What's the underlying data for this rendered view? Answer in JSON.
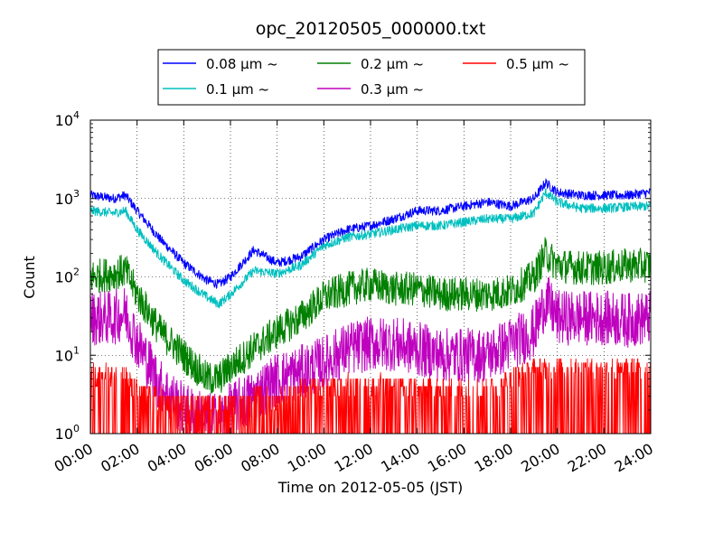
{
  "chart_data": {
    "type": "line",
    "title": "opc_20120505_000000.txt",
    "xlabel": "Time on 2012-05-05 (JST)",
    "ylabel": "Count",
    "yscale": "log",
    "ylim": [
      1,
      10000
    ],
    "xlim": [
      "00:00",
      "24:00"
    ],
    "grid": true,
    "legend_position": "top",
    "x_tick_labels": [
      "00:00",
      "02:00",
      "04:00",
      "06:00",
      "08:00",
      "10:00",
      "12:00",
      "14:00",
      "16:00",
      "18:00",
      "20:00",
      "22:00",
      "24:00"
    ],
    "y_tick_labels": [
      {
        "base": "10",
        "exp": "0"
      },
      {
        "base": "10",
        "exp": "1"
      },
      {
        "base": "10",
        "exp": "2"
      },
      {
        "base": "10",
        "exp": "3"
      },
      {
        "base": "10",
        "exp": "4"
      }
    ],
    "x_hours": [
      0,
      1,
      1.5,
      2,
      3,
      4,
      5,
      5.5,
      6,
      7,
      8,
      9,
      10,
      11,
      12,
      13,
      14,
      15,
      16,
      17,
      18,
      19,
      19.5,
      20,
      21,
      22,
      23,
      24
    ],
    "series": [
      {
        "name": "0.08 μm ~",
        "color": "#0000ff",
        "values": [
          1100,
          1000,
          1100,
          700,
          300,
          150,
          90,
          80,
          100,
          220,
          150,
          180,
          300,
          400,
          450,
          550,
          700,
          700,
          800,
          900,
          800,
          1000,
          1600,
          1200,
          1100,
          1100,
          1100,
          1200
        ]
      },
      {
        "name": "0.1 μm ~",
        "color": "#00bfbf",
        "values": [
          700,
          650,
          700,
          400,
          180,
          90,
          55,
          45,
          60,
          120,
          110,
          140,
          250,
          320,
          350,
          400,
          450,
          450,
          500,
          550,
          550,
          650,
          1200,
          900,
          750,
          750,
          780,
          800
        ]
      },
      {
        "name": "0.2 μm ~",
        "color": "#008000",
        "values": [
          100,
          110,
          120,
          60,
          20,
          10,
          5,
          5,
          7,
          12,
          20,
          30,
          55,
          70,
          80,
          70,
          70,
          60,
          60,
          60,
          65,
          100,
          200,
          140,
          130,
          130,
          140,
          140
        ]
      },
      {
        "name": "0.3 μm ~",
        "color": "#bf00bf",
        "values": [
          30,
          30,
          35,
          15,
          4,
          2,
          1.5,
          1.5,
          2,
          3,
          5,
          6,
          8,
          12,
          14,
          14,
          12,
          10,
          10,
          10,
          14,
          20,
          50,
          30,
          30,
          30,
          28,
          30
        ]
      },
      {
        "name": "0.5 μm ~",
        "color": "#ff0000",
        "values": [
          2.5,
          2.5,
          2.5,
          1.5,
          1.2,
          1,
          1,
          1,
          1,
          1.2,
          1.2,
          1.5,
          1.7,
          1.8,
          1.8,
          1.8,
          1.7,
          1.6,
          1.6,
          1.6,
          2.2,
          3,
          3,
          3,
          3,
          3,
          3,
          3
        ]
      }
    ]
  }
}
